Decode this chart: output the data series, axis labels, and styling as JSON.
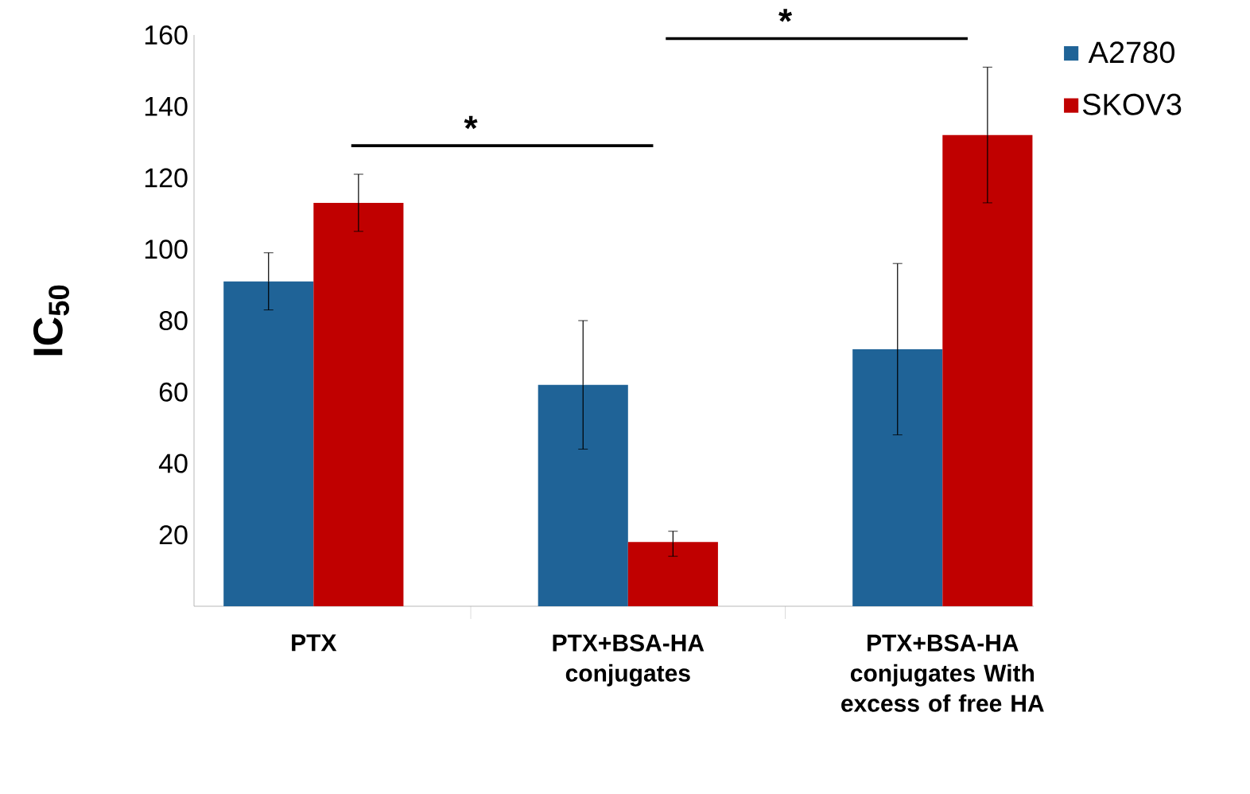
{
  "chart_data": {
    "type": "bar",
    "ylabel": "IC$_{50}$",
    "categories": [
      "PTX",
      "PTX+BSA-HA conjugates",
      "PTX+BSA-HA conjugates With excess of free HA"
    ],
    "series": [
      {
        "name": "A2780",
        "color": "#1f6397",
        "values": [
          91,
          62,
          72
        ],
        "errors": [
          [
            83,
            99
          ],
          [
            44,
            80
          ],
          [
            48,
            96
          ]
        ]
      },
      {
        "name": "SKOV3",
        "color": "#c00000",
        "values": [
          113,
          18,
          132
        ],
        "errors": [
          [
            105,
            121
          ],
          [
            14,
            21
          ],
          [
            113,
            151
          ]
        ]
      }
    ],
    "ylim": [
      0,
      160
    ],
    "yticks": [
      20,
      40,
      60,
      80,
      100,
      120,
      140,
      160
    ],
    "legend": "top right",
    "annotations": [
      "*",
      "*"
    ]
  }
}
